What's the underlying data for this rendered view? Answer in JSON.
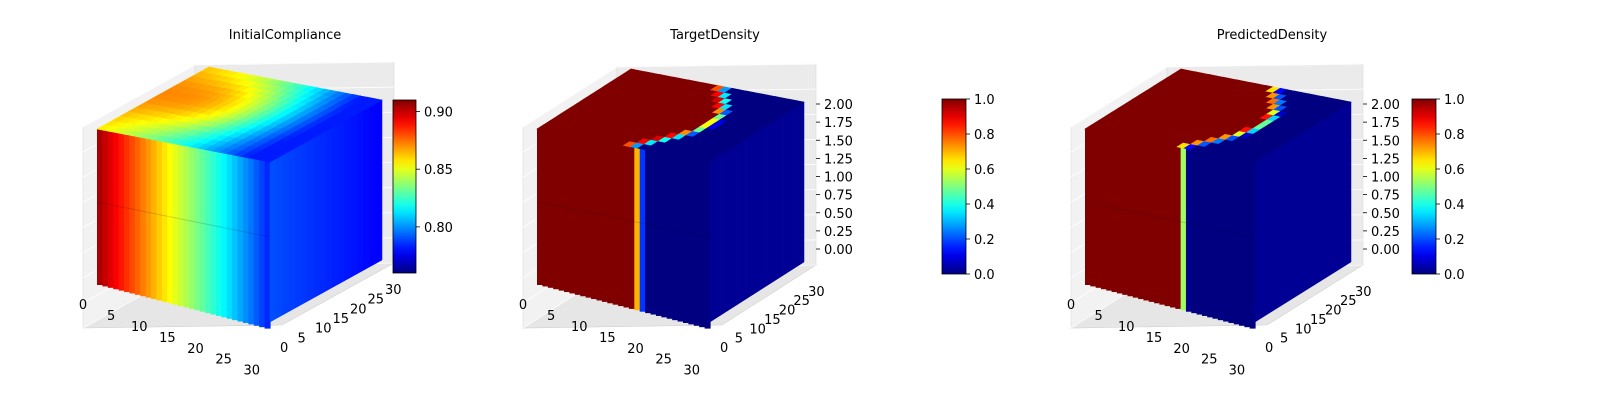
{
  "chart_data": [
    {
      "type": "heatmap",
      "subtype": "3d-voxel",
      "title": "InitialCompliance",
      "colormap": "jet",
      "x_ticks": [
        "0",
        "5",
        "10",
        "15",
        "20",
        "25",
        "30"
      ],
      "y_ticks": [
        "0",
        "5",
        "10",
        "15",
        "20",
        "25",
        "30"
      ],
      "z_ticks": [],
      "xlim": [
        0,
        32
      ],
      "ylim": [
        0,
        32
      ],
      "zlim": [
        0,
        2
      ],
      "grid": true,
      "description": "Top surface shows a warm (orange) patch on the left half, fading through yellow and green to blue on the right; front face graded dark red on the left to blue on the right.",
      "colorbar": {
        "min": 0.76,
        "max": 0.91,
        "ticks": [
          "0.80",
          "0.85",
          "0.90"
        ],
        "tick_values": [
          0.8,
          0.85,
          0.9
        ]
      }
    },
    {
      "type": "heatmap",
      "subtype": "3d-voxel",
      "title": "TargetDensity",
      "colormap": "jet",
      "x_ticks": [
        "0",
        "5",
        "10",
        "15",
        "20",
        "25",
        "30"
      ],
      "y_ticks": [
        "0",
        "5",
        "10",
        "15",
        "20",
        "25",
        "30"
      ],
      "z_ticks": [
        "0.00",
        "0.25",
        "0.50",
        "0.75",
        "1.00",
        "1.25",
        "1.50",
        "1.75",
        "2.00"
      ],
      "xlim": [
        0,
        32
      ],
      "ylim": [
        0,
        32
      ],
      "zlim": [
        0,
        2
      ],
      "grid": true,
      "description": "Solid region (density 1) occupies the left ~60% of the domain with a rounded boundary on top; remainder is void (density 0).",
      "colorbar": {
        "min": 0.0,
        "max": 1.0,
        "ticks": [
          "0.0",
          "0.2",
          "0.4",
          "0.6",
          "0.8",
          "1.0"
        ],
        "tick_values": [
          0.0,
          0.2,
          0.4,
          0.6,
          0.8,
          1.0
        ]
      }
    },
    {
      "type": "heatmap",
      "subtype": "3d-voxel",
      "title": "PredictedDensity",
      "colormap": "jet",
      "x_ticks": [
        "0",
        "5",
        "10",
        "15",
        "20",
        "25",
        "30"
      ],
      "y_ticks": [
        "0",
        "5",
        "10",
        "15",
        "20",
        "25",
        "30"
      ],
      "z_ticks": [
        "0.00",
        "0.25",
        "0.50",
        "0.75",
        "1.00",
        "1.25",
        "1.50",
        "1.75",
        "2.00"
      ],
      "xlim": [
        0,
        32
      ],
      "ylim": [
        0,
        32
      ],
      "zlim": [
        0,
        2
      ],
      "grid": true,
      "description": "Predicted solid region closely matches the target: density 1 on the left with a rounded boundary, density 0 elsewhere.",
      "colorbar": {
        "min": 0.0,
        "max": 1.0,
        "ticks": [
          "0.0",
          "0.2",
          "0.4",
          "0.6",
          "0.8",
          "1.0"
        ],
        "tick_values": [
          0.0,
          0.2,
          0.4,
          0.6,
          0.8,
          1.0
        ]
      }
    }
  ]
}
